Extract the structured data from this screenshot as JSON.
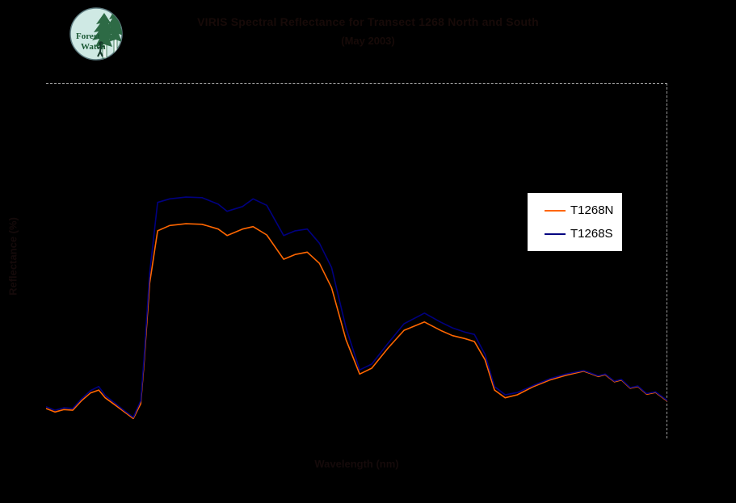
{
  "page": {
    "background_color": "#000000"
  },
  "logo": {
    "text_line1": "Forest",
    "text_line2": "Watch",
    "circle_fill": "#cfe9e4",
    "ring_color": "#5f7d82",
    "tree_color": "#2d6a45",
    "trunk_color": "#e9f5f1",
    "figure_color": "#16382a",
    "text_color": "#1c5a36"
  },
  "title": {
    "line1": "VIRIS Spectral Reflectance for Transect 1268 North and South",
    "line2": "(May 2003)",
    "color": "#170a08",
    "note": "title is rendered nearly black-on-black in the source image and is illegible"
  },
  "axes": {
    "x_label": "Wavelength (nm)",
    "y_label": "Reflectance (%)",
    "label_color": "#150a0a"
  },
  "legend": {
    "background": "#ffffff"
  },
  "chart_data": {
    "type": "line",
    "title": "VIRIS Spectral Reflectance for Transect 1268 North and South",
    "subtitle": "(May 2003)",
    "xlabel": "Wavelength (nm)",
    "ylabel": "Reflectance (%)",
    "xlim": [
      400,
      2500
    ],
    "ylim": [
      0,
      60
    ],
    "grid": false,
    "legend_position": "inside upper-right, white box",
    "plot_border": "gray dashed line on top and right edges only; axes invisible on black background",
    "background": "#000000",
    "x": [
      400,
      430,
      460,
      490,
      520,
      550,
      578,
      600,
      630,
      660,
      695,
      720,
      731,
      750,
      777,
      818,
      873,
      927,
      982,
      1012,
      1064,
      1100,
      1146,
      1203,
      1242,
      1283,
      1324,
      1365,
      1414,
      1460,
      1501,
      1556,
      1610,
      1679,
      1733,
      1774,
      1815,
      1848,
      1884,
      1916,
      1952,
      1993,
      2048,
      2102,
      2157,
      2217,
      2240,
      2266,
      2290,
      2321,
      2345,
      2375,
      2400,
      2430,
      2460,
      2501
    ],
    "series": [
      {
        "name": "T1268N",
        "color": "#FF6600",
        "values": [
          5.2,
          4.6,
          5.0,
          4.9,
          6.5,
          7.8,
          8.3,
          7.0,
          5.9,
          4.8,
          3.5,
          6.0,
          12.7,
          26.3,
          35.2,
          36.1,
          36.4,
          36.3,
          35.5,
          34.4,
          35.5,
          35.9,
          34.5,
          30.4,
          31.2,
          31.6,
          29.7,
          25.6,
          16.8,
          11.0,
          12.0,
          15.4,
          18.4,
          19.8,
          18.4,
          17.5,
          17.0,
          16.5,
          13.4,
          8.3,
          7.0,
          7.5,
          8.9,
          10.0,
          10.8,
          11.5,
          11.1,
          10.6,
          10.9,
          9.7,
          10.0,
          8.6,
          8.9,
          7.6,
          7.9,
          6.4
        ]
      },
      {
        "name": "T1268S",
        "color": "#000080",
        "values": [
          5.5,
          4.9,
          5.3,
          5.2,
          6.8,
          8.2,
          8.9,
          7.4,
          6.2,
          5.0,
          3.7,
          6.5,
          13.5,
          28.0,
          40.0,
          40.6,
          40.9,
          40.8,
          39.7,
          38.5,
          39.3,
          40.6,
          39.5,
          34.4,
          35.2,
          35.5,
          33.1,
          29.0,
          18.8,
          11.7,
          12.7,
          16.2,
          19.5,
          21.3,
          19.8,
          18.8,
          18.1,
          17.7,
          14.3,
          8.9,
          7.5,
          7.9,
          9.1,
          10.2,
          11.0,
          11.6,
          11.2,
          10.7,
          11.0,
          9.8,
          10.1,
          8.7,
          9.0,
          7.7,
          8.0,
          6.5
        ]
      }
    ]
  }
}
